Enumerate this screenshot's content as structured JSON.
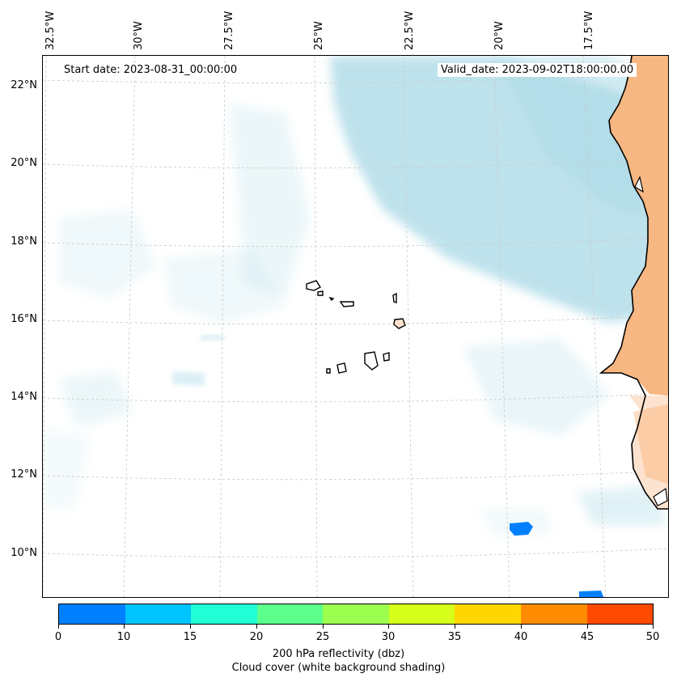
{
  "map": {
    "start_date": "Start date: 2023-08-31_00:00:00",
    "valid_date": "Valid_date: 2023-09-02T18:00:00.00",
    "lon_labels": [
      "32.5°W",
      "30°W",
      "27.5°W",
      "25°W",
      "22.5°W",
      "20°W",
      "17.5°W"
    ],
    "lat_labels": [
      "22°N",
      "20°N",
      "18°N",
      "16°N",
      "14°N",
      "12°N",
      "10°N"
    ]
  },
  "colorbar": {
    "title": "200 hPa reflectivity (dbz)",
    "subtitle": "Cloud cover (white background shading)",
    "ticks": [
      "0",
      "10",
      "15",
      "20",
      "25",
      "30",
      "35",
      "40",
      "45",
      "50"
    ],
    "colors": [
      "#0080ff",
      "#00c4ff",
      "#20ffd6",
      "#5cff8c",
      "#9cff50",
      "#d6ff1a",
      "#ffd700",
      "#ff8c00",
      "#ff4a00"
    ]
  },
  "colors": {
    "cloud": "#a9d9e6",
    "land_warm": "#f5a05a",
    "land_light": "#fde3cf",
    "reflectivity_low": "#0080ff"
  }
}
